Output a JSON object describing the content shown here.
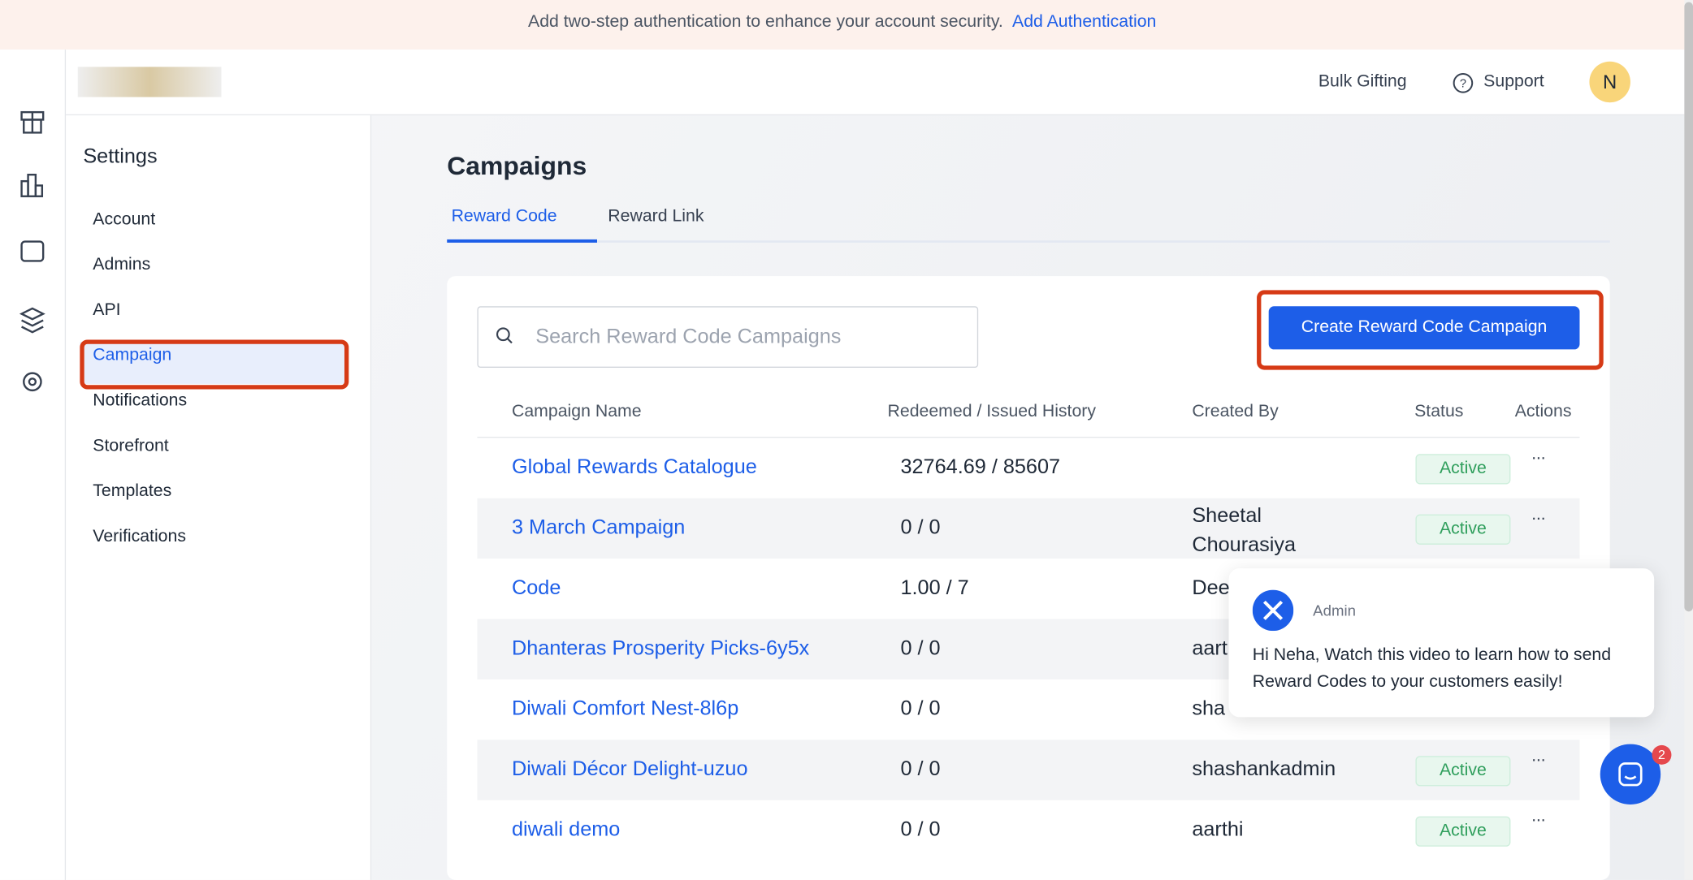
{
  "banner": {
    "text": "Add two-step authentication to enhance your account security.",
    "link": "Add Authentication"
  },
  "header": {
    "bulk_gifting": "Bulk Gifting",
    "support": "Support",
    "avatar": "N"
  },
  "sidebar": {
    "title": "Settings",
    "items": [
      "Account",
      "Admins",
      "API",
      "Campaign",
      "Notifications",
      "Storefront",
      "Templates",
      "Verifications"
    ]
  },
  "main": {
    "title": "Campaigns",
    "tabs": [
      "Reward Code",
      "Reward Link"
    ],
    "search_placeholder": "Search Reward Code Campaigns",
    "create_button": "Create Reward Code Campaign"
  },
  "table": {
    "columns": [
      "Campaign Name",
      "Redeemed / Issued History",
      "Created By",
      "Status",
      "Actions"
    ],
    "rows": [
      {
        "name": "Global Rewards Catalogue",
        "history": "32764.69 / 85607",
        "status": "Active"
      },
      {
        "name": "3 March Campaign",
        "history": "0 / 0",
        "created_by": "Sheetal Chourasiya",
        "status": "Active"
      },
      {
        "name": "Code",
        "history": "1.00 / 7",
        "created_by": "Dee"
      },
      {
        "name": "Dhanteras Prosperity Picks-6y5x",
        "history": "0 / 0",
        "created_by": "aart"
      },
      {
        "name": "Diwali Comfort Nest-8l6p",
        "history": "0 / 0",
        "created_by": "sha"
      },
      {
        "name": "Diwali Décor Delight-uzuo",
        "history": "0 / 0",
        "created_by": "shashankadmin",
        "status": "Active"
      },
      {
        "name": "diwali demo",
        "history": "0 / 0",
        "created_by": "aarthi",
        "status": "Active"
      }
    ]
  },
  "chat": {
    "sender": "Admin",
    "message": "Hi Neha, Watch this video to learn how to send Reward Codes to your customers easily!",
    "badge": "2"
  }
}
